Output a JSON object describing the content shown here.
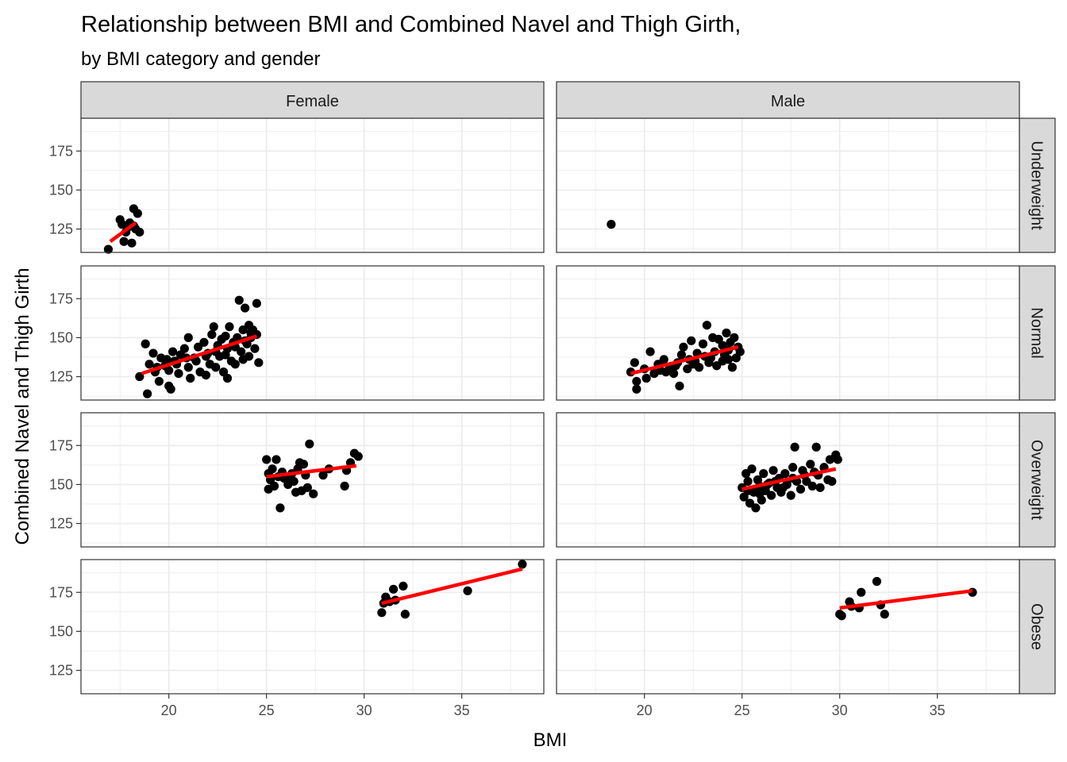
{
  "chart_data": {
    "type": "scatter",
    "title": "Relationship between BMI and Combined Navel and Thigh Girth,",
    "subtitle": "by BMI category and gender",
    "xlabel": "BMI",
    "ylabel": "Combined Navel and Thigh Girth",
    "xlim": [
      15.5,
      39.2
    ],
    "ylim": [
      110,
      196
    ],
    "x_ticks": [
      20,
      25,
      30,
      35
    ],
    "x_tick_labels": [
      "20",
      "25",
      "30",
      "35"
    ],
    "y_ticks": [
      125,
      150,
      175
    ],
    "y_tick_labels": [
      "125",
      "150",
      "175"
    ],
    "grid": true,
    "colors": {
      "point": "#000000",
      "fit_line": "#ff0000",
      "strip": "#d9d9d9",
      "grid": "#ebebeb"
    },
    "columns": [
      "Female",
      "Male"
    ],
    "rows": [
      "Underweight",
      "Normal",
      "Overweight",
      "Obese"
    ],
    "panels": [
      {
        "gender": "Female",
        "category": "Underweight",
        "points": [
          [
            16.9,
            112
          ],
          [
            17.5,
            131
          ],
          [
            17.6,
            128
          ],
          [
            17.8,
            123
          ],
          [
            17.7,
            117
          ],
          [
            18.1,
            116
          ],
          [
            18.0,
            129
          ],
          [
            18.2,
            138
          ],
          [
            18.4,
            135
          ],
          [
            18.3,
            125
          ],
          [
            18.5,
            123
          ],
          [
            17.9,
            126
          ],
          [
            18.2,
            127
          ]
        ],
        "fit": [
          [
            17.0,
            117
          ],
          [
            18.3,
            129
          ]
        ]
      },
      {
        "gender": "Male",
        "category": "Underweight",
        "points": [
          [
            18.3,
            128
          ]
        ],
        "fit": null
      },
      {
        "gender": "Female",
        "category": "Normal",
        "points": [
          [
            18.5,
            125
          ],
          [
            18.8,
            146
          ],
          [
            18.9,
            114
          ],
          [
            19.0,
            133
          ],
          [
            19.2,
            140
          ],
          [
            19.3,
            128
          ],
          [
            19.5,
            122
          ],
          [
            19.6,
            137
          ],
          [
            19.8,
            132
          ],
          [
            20.0,
            119
          ],
          [
            20.0,
            129
          ],
          [
            20.1,
            117
          ],
          [
            20.2,
            141
          ],
          [
            20.3,
            135
          ],
          [
            20.5,
            127
          ],
          [
            20.6,
            139
          ],
          [
            20.8,
            143
          ],
          [
            21.0,
            150
          ],
          [
            21.0,
            131
          ],
          [
            21.1,
            124
          ],
          [
            21.3,
            137
          ],
          [
            21.5,
            144
          ],
          [
            21.6,
            128
          ],
          [
            21.8,
            147
          ],
          [
            21.9,
            126
          ],
          [
            22.0,
            140
          ],
          [
            22.1,
            133
          ],
          [
            22.2,
            152
          ],
          [
            22.3,
            157
          ],
          [
            22.4,
            131
          ],
          [
            22.5,
            145
          ],
          [
            22.6,
            138
          ],
          [
            22.7,
            149
          ],
          [
            22.8,
            128
          ],
          [
            22.9,
            151
          ],
          [
            23.0,
            143
          ],
          [
            23.0,
            124
          ],
          [
            23.1,
            157
          ],
          [
            23.2,
            135
          ],
          [
            23.3,
            147
          ],
          [
            23.4,
            133
          ],
          [
            23.5,
            150
          ],
          [
            23.6,
            174
          ],
          [
            23.7,
            141
          ],
          [
            23.8,
            155
          ],
          [
            23.8,
            136
          ],
          [
            23.9,
            169
          ],
          [
            24.0,
            146
          ],
          [
            24.1,
            158
          ],
          [
            24.1,
            138
          ],
          [
            24.2,
            150
          ],
          [
            24.3,
            155
          ],
          [
            24.4,
            143
          ],
          [
            24.5,
            172
          ],
          [
            24.5,
            152
          ],
          [
            24.6,
            134
          ],
          [
            19.4,
            131
          ],
          [
            19.9,
            136
          ],
          [
            20.4,
            133
          ],
          [
            20.9,
            137
          ],
          [
            21.4,
            135
          ],
          [
            21.9,
            138
          ],
          [
            22.4,
            141
          ],
          [
            22.9,
            139
          ],
          [
            23.4,
            144
          ],
          [
            23.9,
            148
          ],
          [
            24.2,
            153
          ]
        ],
        "fit": [
          [
            18.6,
            127
          ],
          [
            24.5,
            151
          ]
        ]
      },
      {
        "gender": "Male",
        "category": "Normal",
        "points": [
          [
            19.3,
            128
          ],
          [
            19.5,
            134
          ],
          [
            19.6,
            122
          ],
          [
            19.6,
            117
          ],
          [
            20.0,
            130
          ],
          [
            20.1,
            124
          ],
          [
            20.3,
            141
          ],
          [
            20.5,
            127
          ],
          [
            20.7,
            133
          ],
          [
            21.0,
            136
          ],
          [
            21.1,
            128
          ],
          [
            21.3,
            131
          ],
          [
            21.5,
            127
          ],
          [
            21.7,
            134
          ],
          [
            21.8,
            119
          ],
          [
            21.9,
            139
          ],
          [
            22.0,
            144
          ],
          [
            22.2,
            130
          ],
          [
            22.3,
            136
          ],
          [
            22.4,
            148
          ],
          [
            22.5,
            133
          ],
          [
            22.7,
            140
          ],
          [
            22.8,
            131
          ],
          [
            23.0,
            146
          ],
          [
            23.1,
            138
          ],
          [
            23.2,
            158
          ],
          [
            23.3,
            134
          ],
          [
            23.5,
            150
          ],
          [
            23.6,
            141
          ],
          [
            23.7,
            132
          ],
          [
            23.8,
            149
          ],
          [
            24.0,
            145
          ],
          [
            24.0,
            135
          ],
          [
            24.1,
            139
          ],
          [
            24.2,
            153
          ],
          [
            24.3,
            142
          ],
          [
            24.4,
            147
          ],
          [
            24.5,
            131
          ],
          [
            24.6,
            150
          ],
          [
            24.7,
            137
          ],
          [
            24.8,
            144
          ],
          [
            24.9,
            141
          ],
          [
            20.8,
            129
          ],
          [
            21.6,
            132
          ],
          [
            22.6,
            135
          ],
          [
            23.4,
            137
          ],
          [
            24.3,
            136
          ]
        ],
        "fit": [
          [
            19.3,
            127
          ],
          [
            24.8,
            144
          ]
        ]
      },
      {
        "gender": "Female",
        "category": "Overweight",
        "points": [
          [
            25.0,
            166
          ],
          [
            25.1,
            157
          ],
          [
            25.1,
            147
          ],
          [
            25.2,
            153
          ],
          [
            25.3,
            160
          ],
          [
            25.4,
            149
          ],
          [
            25.5,
            166
          ],
          [
            25.6,
            155
          ],
          [
            25.7,
            135
          ],
          [
            25.8,
            158
          ],
          [
            25.9,
            154
          ],
          [
            26.1,
            150
          ],
          [
            26.3,
            157
          ],
          [
            26.5,
            145
          ],
          [
            26.6,
            160
          ],
          [
            26.7,
            164
          ],
          [
            26.8,
            146
          ],
          [
            26.9,
            163
          ],
          [
            27.0,
            156
          ],
          [
            27.1,
            148
          ],
          [
            27.2,
            176
          ],
          [
            27.4,
            144
          ],
          [
            27.9,
            156
          ],
          [
            28.2,
            160
          ],
          [
            29.0,
            149
          ],
          [
            29.1,
            159
          ],
          [
            29.3,
            164
          ],
          [
            29.5,
            170
          ],
          [
            29.7,
            168
          ],
          [
            26.2,
            153
          ],
          [
            26.4,
            152
          ]
        ],
        "fit": [
          [
            25.0,
            155
          ],
          [
            29.6,
            162
          ]
        ]
      },
      {
        "gender": "Male",
        "category": "Overweight",
        "points": [
          [
            25.0,
            148
          ],
          [
            25.1,
            142
          ],
          [
            25.2,
            157
          ],
          [
            25.3,
            152
          ],
          [
            25.4,
            138
          ],
          [
            25.5,
            160
          ],
          [
            25.6,
            145
          ],
          [
            25.7,
            135
          ],
          [
            25.8,
            153
          ],
          [
            25.9,
            149
          ],
          [
            26.0,
            140
          ],
          [
            26.1,
            157
          ],
          [
            26.2,
            146
          ],
          [
            26.4,
            151
          ],
          [
            26.5,
            143
          ],
          [
            26.6,
            159
          ],
          [
            26.8,
            148
          ],
          [
            26.9,
            154
          ],
          [
            27.0,
            145
          ],
          [
            27.2,
            157
          ],
          [
            27.3,
            150
          ],
          [
            27.5,
            143
          ],
          [
            27.6,
            161
          ],
          [
            27.7,
            174
          ],
          [
            27.8,
            152
          ],
          [
            28.0,
            147
          ],
          [
            28.1,
            159
          ],
          [
            28.3,
            152
          ],
          [
            28.5,
            163
          ],
          [
            28.6,
            149
          ],
          [
            28.8,
            174
          ],
          [
            28.9,
            156
          ],
          [
            29.0,
            148
          ],
          [
            29.2,
            161
          ],
          [
            29.4,
            153
          ],
          [
            29.5,
            166
          ],
          [
            29.6,
            152
          ],
          [
            29.8,
            169
          ],
          [
            29.9,
            166
          ],
          [
            25.3,
            146
          ],
          [
            25.9,
            144
          ],
          [
            26.3,
            150
          ],
          [
            26.7,
            152
          ],
          [
            27.1,
            148
          ],
          [
            27.6,
            154
          ],
          [
            28.2,
            156
          ],
          [
            28.7,
            158
          ]
        ],
        "fit": [
          [
            25.0,
            147
          ],
          [
            29.8,
            160
          ]
        ]
      },
      {
        "gender": "Female",
        "category": "Obese",
        "points": [
          [
            30.9,
            162
          ],
          [
            31.0,
            168
          ],
          [
            31.1,
            172
          ],
          [
            31.5,
            177
          ],
          [
            31.6,
            170
          ],
          [
            32.0,
            179
          ],
          [
            32.1,
            161
          ],
          [
            35.3,
            176
          ],
          [
            38.1,
            193
          ],
          [
            31.3,
            169
          ]
        ],
        "fit": [
          [
            30.9,
            168
          ],
          [
            38.1,
            190
          ]
        ]
      },
      {
        "gender": "Male",
        "category": "Obese",
        "points": [
          [
            30.0,
            161
          ],
          [
            30.1,
            160
          ],
          [
            30.5,
            169
          ],
          [
            30.6,
            166
          ],
          [
            31.0,
            165
          ],
          [
            31.1,
            175
          ],
          [
            31.9,
            182
          ],
          [
            32.1,
            167
          ],
          [
            32.3,
            161
          ],
          [
            36.8,
            175
          ]
        ],
        "fit": [
          [
            30.0,
            165
          ],
          [
            36.8,
            176
          ]
        ]
      }
    ]
  }
}
